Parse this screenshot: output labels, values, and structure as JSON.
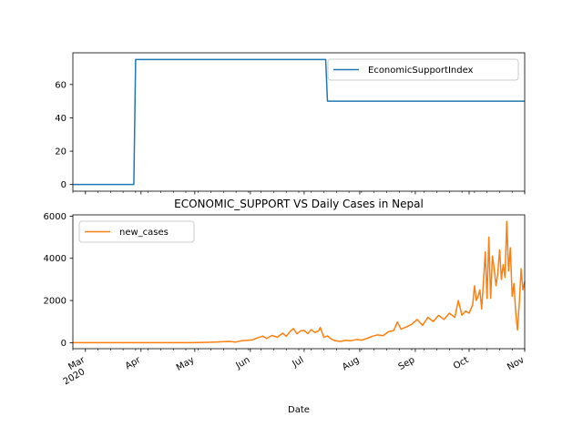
{
  "chart_data": [
    {
      "type": "line",
      "title": "",
      "xlabel": "",
      "ylabel": "",
      "xlim": [
        "2020-02-23",
        "2020-11-01"
      ],
      "ylim": [
        -4,
        79
      ],
      "yticks": [
        0,
        20,
        40,
        60
      ],
      "grid": false,
      "legend_position": "upper right",
      "series": [
        {
          "name": "EconomicSupportIndex",
          "color": "#1f77b4",
          "points": [
            [
              "2020-02-23",
              0
            ],
            [
              "2020-03-28",
              0
            ],
            [
              "2020-03-29",
              75
            ],
            [
              "2020-07-13",
              75
            ],
            [
              "2020-07-14",
              50
            ],
            [
              "2020-11-01",
              50
            ]
          ]
        }
      ]
    },
    {
      "type": "line",
      "title": "ECONOMIC_SUPPORT VS Daily Cases in Nepal",
      "xlabel": "Date",
      "ylabel": "",
      "xlim": [
        "2020-02-23",
        "2020-11-01"
      ],
      "ylim": [
        -285,
        6060
      ],
      "yticks": [
        0,
        2000,
        4000,
        6000
      ],
      "xticks": [
        {
          "date": "2020-03-01",
          "label": "Mar",
          "sublabel": "2020"
        },
        {
          "date": "2020-04-01",
          "label": "Apr",
          "sublabel": ""
        },
        {
          "date": "2020-05-01",
          "label": "May",
          "sublabel": ""
        },
        {
          "date": "2020-06-01",
          "label": "Jun",
          "sublabel": ""
        },
        {
          "date": "2020-07-01",
          "label": "Jul",
          "sublabel": ""
        },
        {
          "date": "2020-08-01",
          "label": "Aug",
          "sublabel": ""
        },
        {
          "date": "2020-09-01",
          "label": "Sep",
          "sublabel": ""
        },
        {
          "date": "2020-10-01",
          "label": "Oct",
          "sublabel": ""
        },
        {
          "date": "2020-11-01",
          "label": "Nov",
          "sublabel": ""
        }
      ],
      "grid": false,
      "legend_position": "upper left",
      "series": [
        {
          "name": "new_cases",
          "color": "#ff7f0e",
          "points": [
            [
              "2020-02-23",
              0
            ],
            [
              "2020-04-30",
              0
            ],
            [
              "2020-05-05",
              10
            ],
            [
              "2020-05-10",
              20
            ],
            [
              "2020-05-15",
              40
            ],
            [
              "2020-05-20",
              60
            ],
            [
              "2020-05-24",
              30
            ],
            [
              "2020-05-27",
              90
            ],
            [
              "2020-05-30",
              110
            ],
            [
              "2020-06-02",
              130
            ],
            [
              "2020-06-05",
              230
            ],
            [
              "2020-06-08",
              310
            ],
            [
              "2020-06-10",
              200
            ],
            [
              "2020-06-13",
              340
            ],
            [
              "2020-06-16",
              260
            ],
            [
              "2020-06-19",
              450
            ],
            [
              "2020-06-21",
              300
            ],
            [
              "2020-06-23",
              520
            ],
            [
              "2020-06-25",
              670
            ],
            [
              "2020-06-27",
              420
            ],
            [
              "2020-06-29",
              560
            ],
            [
              "2020-07-01",
              580
            ],
            [
              "2020-07-03",
              430
            ],
            [
              "2020-07-05",
              620
            ],
            [
              "2020-07-07",
              480
            ],
            [
              "2020-07-09",
              560
            ],
            [
              "2020-07-10",
              720
            ],
            [
              "2020-07-12",
              250
            ],
            [
              "2020-07-14",
              320
            ],
            [
              "2020-07-16",
              180
            ],
            [
              "2020-07-18",
              100
            ],
            [
              "2020-07-21",
              60
            ],
            [
              "2020-07-24",
              110
            ],
            [
              "2020-07-27",
              90
            ],
            [
              "2020-07-30",
              150
            ],
            [
              "2020-08-02",
              120
            ],
            [
              "2020-08-05",
              200
            ],
            [
              "2020-08-08",
              300
            ],
            [
              "2020-08-11",
              370
            ],
            [
              "2020-08-14",
              330
            ],
            [
              "2020-08-17",
              520
            ],
            [
              "2020-08-20",
              580
            ],
            [
              "2020-08-22",
              980
            ],
            [
              "2020-08-24",
              640
            ],
            [
              "2020-08-27",
              750
            ],
            [
              "2020-08-30",
              870
            ],
            [
              "2020-09-02",
              1100
            ],
            [
              "2020-09-05",
              820
            ],
            [
              "2020-09-08",
              1200
            ],
            [
              "2020-09-11",
              1000
            ],
            [
              "2020-09-14",
              1300
            ],
            [
              "2020-09-17",
              1100
            ],
            [
              "2020-09-20",
              1400
            ],
            [
              "2020-09-23",
              1200
            ],
            [
              "2020-09-25",
              2000
            ],
            [
              "2020-09-27",
              1300
            ],
            [
              "2020-09-29",
              1500
            ],
            [
              "2020-10-01",
              1400
            ],
            [
              "2020-10-03",
              1800
            ],
            [
              "2020-10-04",
              2700
            ],
            [
              "2020-10-05",
              2000
            ],
            [
              "2020-10-06",
              2200
            ],
            [
              "2020-10-07",
              2500
            ],
            [
              "2020-10-08",
              1600
            ],
            [
              "2020-10-09",
              2900
            ],
            [
              "2020-10-10",
              4300
            ],
            [
              "2020-10-11",
              2100
            ],
            [
              "2020-10-12",
              5000
            ],
            [
              "2020-10-13",
              2100
            ],
            [
              "2020-10-14",
              4100
            ],
            [
              "2020-10-15",
              3500
            ],
            [
              "2020-10-16",
              2700
            ],
            [
              "2020-10-17",
              3300
            ],
            [
              "2020-10-18",
              4400
            ],
            [
              "2020-10-19",
              3000
            ],
            [
              "2020-10-20",
              3700
            ],
            [
              "2020-10-21",
              3100
            ],
            [
              "2020-10-22",
              5750
            ],
            [
              "2020-10-23",
              3400
            ],
            [
              "2020-10-24",
              4500
            ],
            [
              "2020-10-25",
              2200
            ],
            [
              "2020-10-26",
              2800
            ],
            [
              "2020-10-27",
              1400
            ],
            [
              "2020-10-28",
              600
            ],
            [
              "2020-10-29",
              1900
            ],
            [
              "2020-10-30",
              3500
            ],
            [
              "2020-10-31",
              2500
            ],
            [
              "2020-11-01",
              2900
            ]
          ]
        }
      ]
    }
  ]
}
